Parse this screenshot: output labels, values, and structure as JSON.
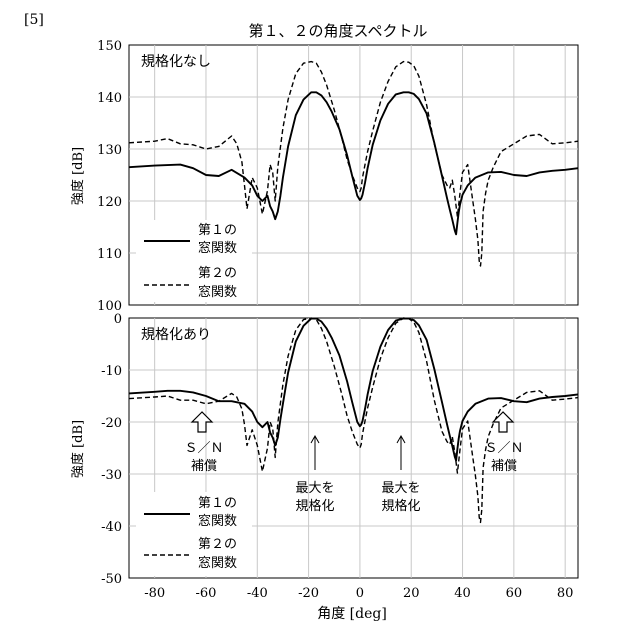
{
  "figure_label": "[5]",
  "title": "第１、２の角度スペクトル",
  "xlabel": "角度 [deg]",
  "x_ticks": [
    "-80",
    "-60",
    "-40",
    "-20",
    "0",
    "20",
    "40",
    "60",
    "80"
  ],
  "chart_data": [
    {
      "type": "line",
      "panel_label": "規格化なし",
      "ylabel": "強度 [dB]",
      "xlim": [
        -90,
        85
      ],
      "ylim": [
        100,
        150
      ],
      "y_ticks": [
        "150",
        "140",
        "130",
        "120",
        "110",
        "100"
      ],
      "grid": true,
      "legend_position": "bottom-left",
      "series": [
        {
          "name": "第１の窓関数",
          "style": "solid",
          "x": [
            -90,
            -80,
            -70,
            -65,
            -60,
            -55,
            -50,
            -45,
            -42,
            -40,
            -38,
            -36,
            -35,
            -34,
            -33,
            -32,
            -31,
            -30,
            -28,
            -25,
            -22,
            -19,
            -17,
            -15,
            -13,
            -11,
            -8,
            -5,
            -3,
            -1,
            0,
            0.5,
            1,
            2,
            3,
            5,
            8,
            11,
            14,
            17,
            19,
            21,
            23,
            26,
            29,
            32,
            34,
            35,
            36,
            37,
            37.5,
            38,
            38.5,
            39,
            40,
            42,
            45,
            50,
            55,
            60,
            65,
            70,
            75,
            80,
            85
          ],
          "y": [
            126.5,
            126.8,
            127,
            126.3,
            125,
            124.8,
            126,
            124.5,
            123,
            121,
            120,
            121,
            119,
            118,
            116.5,
            118,
            121,
            124.5,
            130.5,
            136.5,
            139.5,
            140.9,
            140.9,
            140.3,
            139,
            137.2,
            133.8,
            128.8,
            124.8,
            121,
            120.2,
            120.5,
            121.2,
            123.5,
            126.3,
            130.8,
            135.5,
            138.7,
            140.5,
            140.9,
            140.9,
            140.6,
            139.6,
            136.8,
            131.2,
            124.8,
            120.5,
            118.4,
            116.4,
            114.3,
            113.6,
            115.8,
            117.8,
            119.3,
            121.2,
            123,
            124.5,
            125.5,
            125.6,
            125,
            124.8,
            125.5,
            125.8,
            126,
            126.3
          ]
        },
        {
          "name": "第２の窓関数",
          "style": "dashed",
          "x": [
            -90,
            -80,
            -75,
            -70,
            -65,
            -60,
            -55,
            -50,
            -48,
            -46,
            -45,
            -44,
            -42,
            -40,
            -38,
            -36,
            -35,
            -34,
            -33,
            -32,
            -30,
            -28,
            -25,
            -22,
            -19,
            -17,
            -15,
            -13,
            -10,
            -7,
            -5,
            -3,
            -1,
            0,
            0.5,
            1,
            2,
            3,
            5,
            8,
            11,
            14,
            17,
            19,
            21,
            23,
            26,
            29,
            32,
            34,
            35,
            36,
            37,
            38,
            39,
            40,
            42,
            44,
            45,
            46,
            46.5,
            47,
            47.5,
            48,
            49,
            50,
            52,
            55,
            60,
            65,
            70,
            75,
            80,
            85
          ],
          "y": [
            131.2,
            131.5,
            132,
            131,
            130.8,
            130,
            130.5,
            132.5,
            131,
            127.5,
            123,
            118.5,
            124.5,
            122.5,
            117.5,
            122,
            127,
            125.5,
            120,
            126.5,
            134,
            139.5,
            144.5,
            146.5,
            146.8,
            146.5,
            144.8,
            142.3,
            137.5,
            132,
            128,
            125,
            122.5,
            121.8,
            122.5,
            124.5,
            127,
            129.5,
            133.5,
            139,
            143,
            145.8,
            146.8,
            146.7,
            146,
            144,
            138.5,
            131,
            125,
            123,
            122.5,
            124,
            121,
            117,
            121.5,
            125.5,
            127,
            120,
            116.5,
            112.5,
            108.5,
            107.5,
            110,
            118,
            121.5,
            124,
            126.5,
            129.5,
            131,
            132.5,
            132.8,
            131,
            131.2,
            131.5
          ]
        }
      ]
    },
    {
      "type": "line",
      "panel_label": "規格化あり",
      "ylabel": "強度 [dB]",
      "xlim": [
        -90,
        85
      ],
      "ylim": [
        -50,
        0
      ],
      "y_ticks": [
        "0",
        "-10",
        "-20",
        "-30",
        "-40",
        "-50"
      ],
      "grid": true,
      "legend_position": "bottom-left",
      "series": [
        {
          "name": "第１の窓関数",
          "style": "solid",
          "x": [
            -90,
            -80,
            -75,
            -70,
            -65,
            -60,
            -55,
            -50,
            -45,
            -42,
            -40,
            -38,
            -36,
            -35,
            -34,
            -33,
            -32,
            -31,
            -30,
            -28,
            -25,
            -22,
            -19,
            -17,
            -15,
            -13,
            -11,
            -8,
            -5,
            -3,
            -1,
            0,
            0.5,
            1,
            2,
            3,
            5,
            8,
            11,
            14,
            17,
            19,
            21,
            23,
            26,
            29,
            32,
            34,
            35,
            36,
            37,
            37.5,
            38,
            38.5,
            39,
            40,
            42,
            45,
            50,
            55,
            60,
            65,
            70,
            75,
            80,
            85
          ],
          "y": [
            -14.5,
            -14.2,
            -14,
            -14,
            -14.3,
            -15,
            -16,
            -16,
            -16.5,
            -18,
            -20,
            -21,
            -20,
            -22,
            -23,
            -24.5,
            -23,
            -19.5,
            -16.5,
            -10.5,
            -4.5,
            -1.5,
            -0.1,
            -0.1,
            -0.7,
            -2,
            -3.8,
            -7.2,
            -12.2,
            -16.2,
            -20,
            -20.8,
            -20.5,
            -19.8,
            -17.5,
            -14.7,
            -10.2,
            -5.5,
            -2.3,
            -0.5,
            -0.1,
            -0.1,
            -0.4,
            -1.4,
            -4.2,
            -9.8,
            -16.2,
            -20.5,
            -22.6,
            -24.6,
            -26.7,
            -27.4,
            -25.2,
            -23.2,
            -21.7,
            -19.8,
            -18,
            -16.5,
            -15.5,
            -15.4,
            -16,
            -16.2,
            -15.5,
            -15.2,
            -15,
            -14.7
          ]
        },
        {
          "name": "第２の窓関数",
          "style": "dashed",
          "x": [
            -90,
            -80,
            -75,
            -70,
            -65,
            -60,
            -55,
            -50,
            -48,
            -46,
            -45,
            -44,
            -42,
            -40,
            -38,
            -36,
            -35,
            -34,
            -33,
            -32,
            -30,
            -28,
            -25,
            -22,
            -19,
            -17,
            -15,
            -13,
            -10,
            -7,
            -5,
            -3,
            -1,
            0,
            0.5,
            1,
            2,
            3,
            5,
            8,
            11,
            14,
            17,
            19,
            21,
            23,
            26,
            29,
            32,
            34,
            35,
            36,
            37,
            38,
            39,
            40,
            42,
            44,
            45,
            46,
            46.5,
            47,
            47.5,
            48,
            49,
            50,
            52,
            55,
            60,
            65,
            70,
            75,
            80,
            85
          ],
          "y": [
            -15.5,
            -15.2,
            -15,
            -15.8,
            -15.8,
            -16.5,
            -16,
            -14.5,
            -15.2,
            -17.5,
            -20.5,
            -24.5,
            -21.5,
            -24.5,
            -29.5,
            -25,
            -20,
            -21.2,
            -26.8,
            -20.2,
            -12.8,
            -7.3,
            -2.3,
            -0.3,
            0,
            -0.3,
            -2,
            -4.5,
            -9.3,
            -14.8,
            -18.8,
            -21.8,
            -24.3,
            -25,
            -24.3,
            -22.3,
            -19.8,
            -17.3,
            -13.3,
            -7.8,
            -3.8,
            -1,
            0,
            -0.1,
            -0.8,
            -2.8,
            -8.3,
            -15.8,
            -21.8,
            -23.8,
            -24.3,
            -22.8,
            -25.8,
            -29.8,
            -25.3,
            -21.3,
            -19.8,
            -26.8,
            -30.3,
            -34.3,
            -38.3,
            -39.3,
            -36.8,
            -28.8,
            -25.3,
            -22.8,
            -20.3,
            -17.3,
            -15.8,
            -14.3,
            -14,
            -15.8,
            -15.6,
            -15.3
          ]
        }
      ],
      "annotations": {
        "sn_left": [
          "Ｓ／Ｎ",
          "補償"
        ],
        "sn_right": [
          "Ｓ／Ｎ",
          "補償"
        ],
        "max_left": [
          "最大を",
          "規格化"
        ],
        "max_right": [
          "最大を",
          "規格化"
        ]
      }
    }
  ],
  "legend": {
    "series1": [
      "第１の",
      "窓関数"
    ],
    "series2": [
      "第２の",
      "窓関数"
    ]
  }
}
